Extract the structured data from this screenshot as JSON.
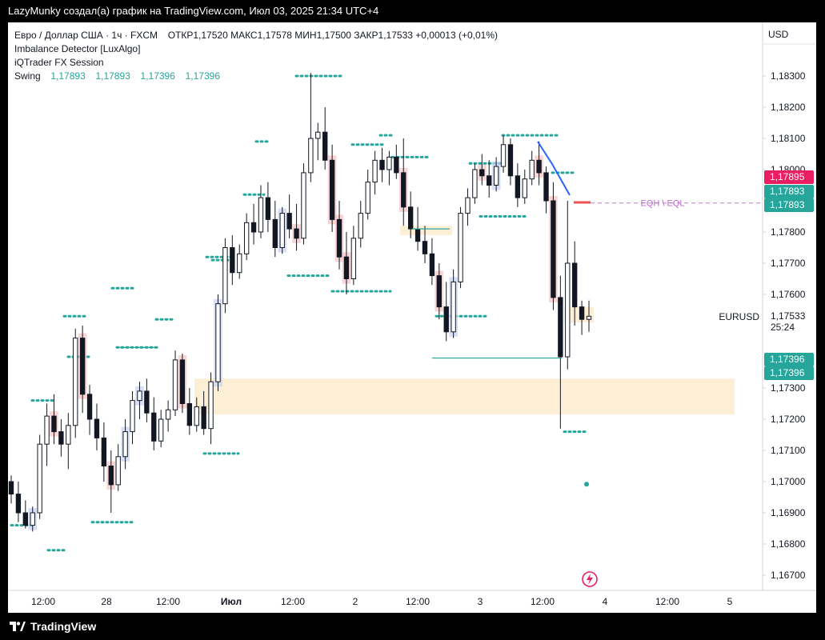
{
  "header": {
    "attribution": "LazyMunky создал(а) график на TradingView.com, Июл 03, 2025 21:34 UTC+4"
  },
  "legend": {
    "symbol": "Евро / Доллар США · 1ч · FXCM",
    "ohlc": "ОТКР1,17520  МАКС1,17578  МИН1,17500  ЗАКР1,17533  +0,00013 (+0,01%)",
    "indicator1": "Imbalance Detector [LuxAlgo]",
    "indicator2": "iQTrader FX Session",
    "swing_label": "Swing",
    "swing_values": [
      "1,17893",
      "1,17893",
      "1,17396",
      "1,17396"
    ]
  },
  "price_axis": {
    "currency": "USD",
    "ticks": [
      "1,18300",
      "1,18200",
      "1,18100",
      "1,18000",
      "1,17800",
      "1,17700",
      "1,17600",
      "1,17300",
      "1,17200",
      "1,17100",
      "1,17000",
      "1,16900",
      "1,16800",
      "1,16700"
    ],
    "badges": [
      {
        "text": "1,17895",
        "color": "#e91e63",
        "value": 1.17895
      },
      {
        "text": "1,17893",
        "color": "#26a69a",
        "value": 1.17893
      },
      {
        "text": "1,17893",
        "color": "#26a69a",
        "value": 1.17893
      },
      {
        "text": "1,17396",
        "color": "#26a69a",
        "value": 1.17396
      },
      {
        "text": "1,17396",
        "color": "#26a69a",
        "value": 1.17396
      }
    ],
    "last_price": "1,17533",
    "countdown": "25:24",
    "symbol_label": "EURUSD"
  },
  "time_axis": {
    "labels": [
      "12:00",
      "28",
      "12:00",
      "Июл",
      "12:00",
      "2",
      "12:00",
      "3",
      "12:00",
      "4",
      "12:00",
      "5"
    ]
  },
  "annotation": {
    "eq_label": "EQH \\ EQL"
  },
  "footer": {
    "brand": "TradingView"
  },
  "chart_data": {
    "type": "candlestick",
    "symbol": "EURUSD",
    "interval": "1h",
    "y_range": [
      1.1665,
      1.1836
    ],
    "last_close": 1.17533,
    "candles_ohlc": [
      [
        1.17,
        1.1702,
        1.1693,
        1.1696
      ],
      [
        1.1696,
        1.17,
        1.1687,
        1.169
      ],
      [
        1.169,
        1.1694,
        1.1685,
        1.1686
      ],
      [
        1.1686,
        1.1692,
        1.1684,
        1.169
      ],
      [
        1.169,
        1.1715,
        1.1688,
        1.1712
      ],
      [
        1.1712,
        1.1725,
        1.1705,
        1.1721
      ],
      [
        1.1721,
        1.1728,
        1.1712,
        1.1716
      ],
      [
        1.1716,
        1.172,
        1.1708,
        1.1712
      ],
      [
        1.1712,
        1.1722,
        1.1704,
        1.1718
      ],
      [
        1.1718,
        1.1749,
        1.1714,
        1.1746
      ],
      [
        1.1746,
        1.175,
        1.1722,
        1.1728
      ],
      [
        1.1728,
        1.1731,
        1.1715,
        1.172
      ],
      [
        1.172,
        1.1725,
        1.171,
        1.1714
      ],
      [
        1.1714,
        1.1719,
        1.17,
        1.1705
      ],
      [
        1.1705,
        1.171,
        1.169,
        1.1699
      ],
      [
        1.1699,
        1.1712,
        1.1697,
        1.1708
      ],
      [
        1.1708,
        1.172,
        1.1704,
        1.1716
      ],
      [
        1.1716,
        1.1729,
        1.1712,
        1.1726
      ],
      [
        1.1726,
        1.1732,
        1.172,
        1.1729
      ],
      [
        1.1729,
        1.1733,
        1.1719,
        1.1722
      ],
      [
        1.1722,
        1.1727,
        1.171,
        1.1713
      ],
      [
        1.1713,
        1.1723,
        1.1711,
        1.172
      ],
      [
        1.172,
        1.1726,
        1.1716,
        1.1723
      ],
      [
        1.1723,
        1.1742,
        1.1721,
        1.1739
      ],
      [
        1.1739,
        1.1741,
        1.1722,
        1.1725
      ],
      [
        1.1725,
        1.173,
        1.1715,
        1.1718
      ],
      [
        1.1718,
        1.1727,
        1.1716,
        1.1724
      ],
      [
        1.1724,
        1.1729,
        1.1715,
        1.1717
      ],
      [
        1.1717,
        1.1735,
        1.1712,
        1.1732
      ],
      [
        1.1732,
        1.176,
        1.1729,
        1.1757
      ],
      [
        1.1757,
        1.1778,
        1.1754,
        1.1775
      ],
      [
        1.1775,
        1.1779,
        1.1763,
        1.1767
      ],
      [
        1.1767,
        1.1776,
        1.1765,
        1.1773
      ],
      [
        1.1773,
        1.1786,
        1.1771,
        1.1783
      ],
      [
        1.1783,
        1.1789,
        1.1776,
        1.178
      ],
      [
        1.178,
        1.1795,
        1.1778,
        1.1791
      ],
      [
        1.1791,
        1.1796,
        1.178,
        1.1784
      ],
      [
        1.1784,
        1.179,
        1.1772,
        1.1775
      ],
      [
        1.1775,
        1.1788,
        1.1773,
        1.1786
      ],
      [
        1.1786,
        1.1792,
        1.1778,
        1.1781
      ],
      [
        1.1781,
        1.1789,
        1.1774,
        1.1778
      ],
      [
        1.1778,
        1.1802,
        1.1776,
        1.1799
      ],
      [
        1.1799,
        1.1831,
        1.1796,
        1.181
      ],
      [
        1.181,
        1.1815,
        1.1803,
        1.1812
      ],
      [
        1.1812,
        1.182,
        1.18,
        1.1803
      ],
      [
        1.1803,
        1.1808,
        1.178,
        1.1784
      ],
      [
        1.1784,
        1.179,
        1.1768,
        1.1772
      ],
      [
        1.1772,
        1.178,
        1.176,
        1.1765
      ],
      [
        1.1765,
        1.1782,
        1.1763,
        1.1778
      ],
      [
        1.1778,
        1.179,
        1.1775,
        1.1786
      ],
      [
        1.1786,
        1.18,
        1.1784,
        1.1796
      ],
      [
        1.1796,
        1.1806,
        1.1792,
        1.1803
      ],
      [
        1.1803,
        1.1807,
        1.1796,
        1.18
      ],
      [
        1.18,
        1.1806,
        1.1795,
        1.1804
      ],
      [
        1.1804,
        1.1808,
        1.1797,
        1.1799
      ],
      [
        1.1799,
        1.181,
        1.1782,
        1.1788
      ],
      [
        1.1788,
        1.1793,
        1.1778,
        1.1781
      ],
      [
        1.1781,
        1.1788,
        1.1774,
        1.1777
      ],
      [
        1.1777,
        1.1782,
        1.177,
        1.1773
      ],
      [
        1.1773,
        1.1778,
        1.1763,
        1.1766
      ],
      [
        1.1766,
        1.177,
        1.1752,
        1.1756
      ],
      [
        1.1756,
        1.1764,
        1.1745,
        1.1748
      ],
      [
        1.1748,
        1.1768,
        1.1746,
        1.1764
      ],
      [
        1.1764,
        1.1788,
        1.1762,
        1.1786
      ],
      [
        1.1786,
        1.1794,
        1.1782,
        1.1791
      ],
      [
        1.1791,
        1.1802,
        1.1789,
        1.18
      ],
      [
        1.18,
        1.1805,
        1.1795,
        1.1798
      ],
      [
        1.1798,
        1.1803,
        1.1791,
        1.1795
      ],
      [
        1.1795,
        1.1804,
        1.1793,
        1.1801
      ],
      [
        1.1801,
        1.1811,
        1.1799,
        1.1808
      ],
      [
        1.1808,
        1.181,
        1.1795,
        1.1798
      ],
      [
        1.1798,
        1.1802,
        1.1788,
        1.1791
      ],
      [
        1.1791,
        1.18,
        1.1789,
        1.1797
      ],
      [
        1.1797,
        1.1806,
        1.1795,
        1.1803
      ],
      [
        1.1803,
        1.1809,
        1.1795,
        1.1799
      ],
      [
        1.1799,
        1.1801,
        1.1786,
        1.179
      ],
      [
        1.179,
        1.1796,
        1.1755,
        1.1759
      ],
      [
        1.1759,
        1.1766,
        1.1717,
        1.174
      ],
      [
        1.174,
        1.179,
        1.1736,
        1.177
      ],
      [
        1.177,
        1.1777,
        1.175,
        1.1756
      ],
      [
        1.1756,
        1.1758,
        1.1747,
        1.1752
      ],
      [
        1.1752,
        1.1758,
        1.1748,
        1.1753
      ]
    ],
    "zones": [
      {
        "type": "supply/demand",
        "top": 1.1733,
        "bottom": 1.17215,
        "color": "#fdefd6"
      },
      {
        "type": "supply/demand",
        "top": 1.1782,
        "bottom": 1.1779,
        "color": "#fdefd6"
      },
      {
        "type": "supply/demand",
        "top": 1.1756,
        "bottom": 1.1751,
        "color": "#fdefd6"
      }
    ],
    "levels": [
      {
        "label": "EQH \\ EQL",
        "value": 1.17893,
        "style": "dashed",
        "color": "#ce93d8"
      },
      {
        "value": 1.17396,
        "style": "solid",
        "color": "#26a69a"
      }
    ]
  }
}
